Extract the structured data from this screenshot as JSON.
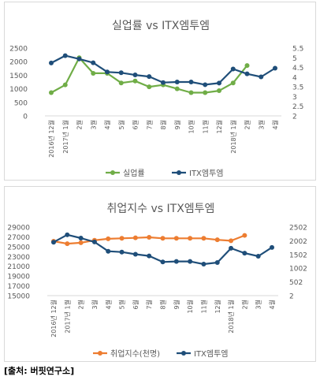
{
  "chart_data": [
    {
      "type": "line",
      "title": "실업률 vs ITX엠투엠",
      "categories": [
        "2016년 12월",
        "2017년 1월",
        "2월",
        "3월",
        "4월",
        "5월",
        "6월",
        "7월",
        "8월",
        "9월",
        "10월",
        "11월",
        "12월",
        "2018년 1월",
        "2월",
        "3월",
        "4월"
      ],
      "y_left": {
        "min": 0,
        "max": 2500,
        "ticks": [
          "0",
          "500",
          "1000",
          "1500",
          "2000",
          "2500"
        ]
      },
      "y_right": {
        "min": 2,
        "max": 5.5,
        "ticks": [
          "2",
          "2.5",
          "3",
          "3.5",
          "4",
          "4.5",
          "5",
          "5.5"
        ]
      },
      "grid": false,
      "legend_position": "bottom",
      "series": [
        {
          "name": "실업률",
          "axis": "right",
          "color": "#70ad47",
          "values": [
            3.2,
            3.6,
            5.0,
            4.2,
            4.2,
            3.7,
            3.8,
            3.5,
            3.6,
            3.4,
            3.2,
            3.2,
            3.3,
            3.7,
            4.6,
            null,
            null
          ]
        },
        {
          "name": "ITX엠투엠",
          "axis": "left",
          "color": "#1f4e79",
          "values": [
            1950,
            2220,
            2100,
            1960,
            1620,
            1590,
            1510,
            1450,
            1230,
            1250,
            1250,
            1150,
            1210,
            1730,
            1550,
            1440,
            1760
          ]
        }
      ]
    },
    {
      "type": "line",
      "title": "취업지수 vs ITX엠투엠",
      "categories": [
        "2016년 12월",
        "2017년 1월",
        "2월",
        "3월",
        "4월",
        "5월",
        "6월",
        "7월",
        "8월",
        "9월",
        "10월",
        "11월",
        "12월",
        "2018년 1월",
        "2월",
        "3월",
        "4월"
      ],
      "y_left": {
        "min": 15000,
        "max": 29000,
        "ticks": [
          "15000",
          "17000",
          "19000",
          "21000",
          "23000",
          "25000",
          "27000",
          "29000"
        ]
      },
      "y_right": {
        "min": 2,
        "max": 2502,
        "ticks": [
          "2",
          "502",
          "1002",
          "1502",
          "2002",
          "2502"
        ]
      },
      "grid": false,
      "legend_position": "bottom",
      "series": [
        {
          "name": "취업지수(천명)",
          "axis": "left",
          "color": "#ed7d31",
          "values": [
            26100,
            25600,
            25800,
            26300,
            26600,
            26700,
            26800,
            26900,
            26700,
            26700,
            26700,
            26700,
            26400,
            26200,
            27300,
            null,
            null
          ]
        },
        {
          "name": "ITX엠투엠",
          "axis": "right",
          "color": "#1f4e79",
          "values": [
            1950,
            2220,
            2100,
            1960,
            1620,
            1590,
            1510,
            1450,
            1230,
            1250,
            1250,
            1150,
            1210,
            1730,
            1550,
            1440,
            1760
          ]
        }
      ]
    }
  ],
  "source": "[출처: 버핏연구소]"
}
